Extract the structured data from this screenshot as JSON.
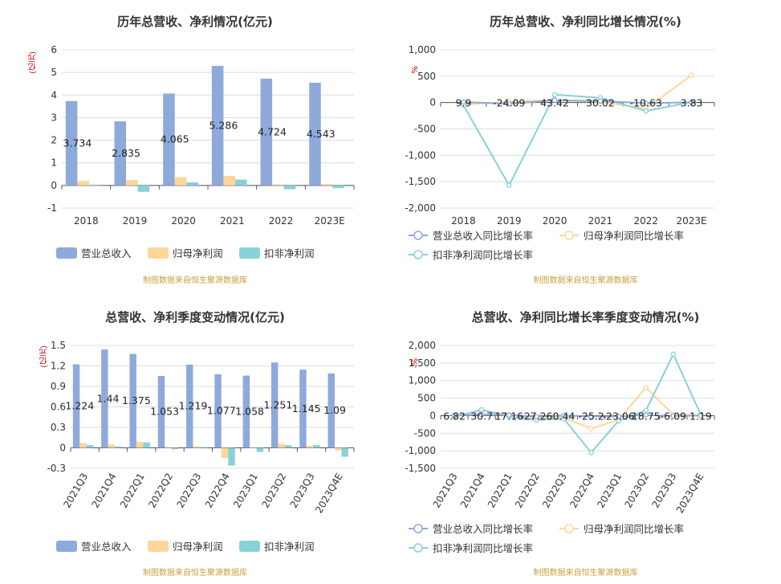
{
  "chart_data": [
    {
      "type": "bar",
      "title": "历年总营收、净利情况(亿元)",
      "unit_label": "(亿元)",
      "categories": [
        "2018",
        "2019",
        "2020",
        "2021",
        "2022",
        "2023E"
      ],
      "ylim": [
        -1,
        6
      ],
      "yticks": [
        "-1",
        "0",
        "1",
        "2",
        "3",
        "4",
        "5",
        "6"
      ],
      "series": [
        {
          "name": "营业总收入",
          "color": "#8eaadb",
          "values": [
            3.734,
            2.835,
            4.065,
            5.286,
            4.724,
            4.543
          ]
        },
        {
          "name": "归母净利润",
          "color": "#ffd699",
          "values": [
            0.2,
            0.24,
            0.37,
            0.42,
            -0.05,
            0.06
          ]
        },
        {
          "name": "扣非净利润",
          "color": "#88d1d8",
          "values": [
            0.0,
            -0.28,
            0.14,
            0.26,
            -0.17,
            -0.12
          ]
        }
      ],
      "data_labels": [
        "3.734",
        "2.835",
        "4.065",
        "5.286",
        "4.724",
        "4.543"
      ],
      "grid": true,
      "legend": "bottom",
      "source": "制图数据来自恒生聚源数据库"
    },
    {
      "type": "line",
      "title": "历年总营收、净利同比增长情况(%)",
      "unit_label": "%",
      "categories": [
        "2018",
        "2019",
        "2020",
        "2021",
        "2022",
        "2023E"
      ],
      "ylim": [
        -2000,
        1000
      ],
      "yticks": [
        "-2,000",
        "-1,500",
        "-1,000",
        "-500",
        "0",
        "500",
        "1,000"
      ],
      "series": [
        {
          "name": "营业总收入同比增长率",
          "color": "#8eaadb",
          "values": [
            9.9,
            -24.09,
            43.42,
            30.02,
            -10.63,
            3.83
          ]
        },
        {
          "name": "归母净利润同比增长率",
          "color": "#ffd699",
          "values": [
            -40,
            20,
            50,
            12,
            -110,
            520
          ]
        },
        {
          "name": "扣非净利润同比增长率",
          "color": "#88d1d8",
          "values": [
            -50,
            -1570,
            150,
            90,
            -160,
            10
          ]
        }
      ],
      "data_labels": [
        "9.9",
        "-24.09",
        "43.42",
        "30.02",
        "-10.63",
        "3.83"
      ],
      "grid": true,
      "legend": "bottom",
      "source": "制图数据来自恒生聚源数据库"
    },
    {
      "type": "bar",
      "title": "总营收、净利季度变动情况(亿元)",
      "unit_label": "(亿元)",
      "categories": [
        "2021Q3",
        "2021Q4",
        "2022Q1",
        "2022Q2",
        "2022Q3",
        "2022Q4",
        "2023Q1",
        "2023Q2",
        "2023Q3",
        "2023Q4E"
      ],
      "ylim": [
        -0.3,
        1.5
      ],
      "yticks": [
        "-0.3",
        "0",
        "0.3",
        "0.6",
        "0.9",
        "1.2",
        "1.5"
      ],
      "series": [
        {
          "name": "营业总收入",
          "color": "#8eaadb",
          "values": [
            1.224,
            1.44,
            1.375,
            1.053,
            1.219,
            1.077,
            1.058,
            1.251,
            1.145,
            1.09
          ]
        },
        {
          "name": "归母净利润",
          "color": "#ffd699",
          "values": [
            0.07,
            0.05,
            0.09,
            0.01,
            0.02,
            -0.15,
            0.01,
            0.06,
            0.03,
            -0.04
          ]
        },
        {
          "name": "扣非净利润",
          "color": "#88d1d8",
          "values": [
            0.04,
            0.02,
            0.08,
            -0.02,
            0.01,
            -0.26,
            -0.06,
            0.04,
            0.04,
            -0.13
          ]
        }
      ],
      "data_labels": [
        "1.224",
        "1.44",
        "1.375",
        "1.053",
        "1.219",
        "1.077",
        "1.058",
        "1.251",
        "1.145",
        "1.09"
      ],
      "grid": true,
      "legend": "bottom",
      "source": "制图数据来自恒生聚源数据库"
    },
    {
      "type": "line",
      "title": "总营收、净利同比增长率季度变动情况(%)",
      "unit_label": "%",
      "categories": [
        "2021Q3",
        "2021Q4",
        "2022Q1",
        "2022Q2",
        "2022Q3",
        "2022Q4",
        "2023Q1",
        "2023Q2",
        "2023Q3",
        "2023Q4E"
      ],
      "ylim": [
        -1500,
        2000
      ],
      "yticks": [
        "-1,500",
        "-1,000",
        "-500",
        "0",
        "500",
        "1,000",
        "1,500",
        "2,000"
      ],
      "series": [
        {
          "name": "营业总收入同比增长率",
          "color": "#8eaadb",
          "values": [
            6.82,
            30.7,
            17.16,
            -27.26,
            0.44,
            -25.2,
            -23.06,
            18.75,
            -6.09,
            1.19
          ]
        },
        {
          "name": "归母净利润同比增长率",
          "color": "#ffd699",
          "values": [
            -20,
            150,
            30,
            -80,
            -60,
            -370,
            -120,
            800,
            30,
            20
          ]
        },
        {
          "name": "扣非净利润同比增长率",
          "color": "#88d1d8",
          "values": [
            -30,
            170,
            -30,
            -120,
            -90,
            -1050,
            -150,
            150,
            1750,
            30
          ]
        }
      ],
      "data_labels": [
        "6.82",
        "30.7",
        "17.16",
        "-27.26",
        "0.44",
        "-25.2",
        "-23.06",
        "18.75",
        "-6.09",
        "1.19"
      ],
      "grid": true,
      "legend": "bottom",
      "source": "制图数据来自恒生聚源数据库"
    }
  ]
}
